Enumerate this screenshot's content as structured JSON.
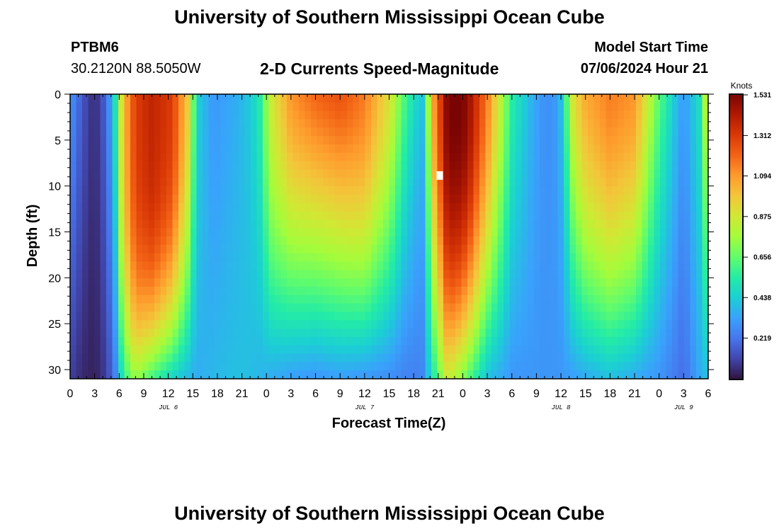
{
  "header": {
    "title": "University of Southern Mississippi Ocean Cube",
    "station_id": "PTBM6",
    "station_coords": "30.2120N  88.5050W",
    "plot_title": "2-D Currents Speed-Magnitude",
    "model_start_label": "Model Start Time",
    "model_start_value": "07/06/2024 Hour 21"
  },
  "footer": {
    "title": "University of Southern Mississippi Ocean Cube"
  },
  "chart_data": {
    "type": "heatmap",
    "title": "2-D Currents Speed-Magnitude",
    "xlabel": "Forecast Time(Z)",
    "ylabel": "Depth (ft)",
    "xlim_hours": [
      0,
      78
    ],
    "ylim": [
      31,
      0
    ],
    "x_ticks_hours": [
      0,
      3,
      6,
      9,
      12,
      15,
      18,
      21,
      24,
      27,
      30,
      33,
      36,
      39,
      42,
      45,
      48,
      51,
      54,
      57,
      60,
      63,
      66,
      69,
      72,
      75,
      78
    ],
    "x_tick_labels": [
      "0",
      "3",
      "6",
      "9",
      "12",
      "15",
      "18",
      "21",
      "0",
      "3",
      "6",
      "9",
      "12",
      "15",
      "18",
      "21",
      "0",
      "3",
      "6",
      "9",
      "12",
      "15",
      "18",
      "21",
      "0",
      "3",
      "6"
    ],
    "y_ticks": [
      0,
      5,
      10,
      15,
      20,
      25,
      30
    ],
    "y_tick_labels": [
      "0",
      "5",
      "10",
      "15",
      "20",
      "25",
      "30"
    ],
    "date_labels": [
      {
        "text": "JUL 6",
        "hour": 12
      },
      {
        "text": "JUL 7",
        "hour": 36
      },
      {
        "text": "JUL 8",
        "hour": 60
      },
      {
        "text": "JUL 9",
        "hour": 75
      }
    ],
    "colorbar": {
      "units": "Knots",
      "min": 0,
      "max": 1.531,
      "tick_values": [
        1.531,
        1.312,
        1.094,
        0.875,
        0.656,
        0.438,
        0.219
      ],
      "tick_labels": [
        "1.531",
        "1.312",
        "1.094",
        "0.875",
        "0.656",
        "0.438",
        "0.219"
      ],
      "colors": [
        "#30123b",
        "#4145ab",
        "#4675ed",
        "#39a2fc",
        "#1bcfd4",
        "#24eca6",
        "#61fc6c",
        "#a4fc3b",
        "#d1e834",
        "#f3c63a",
        "#fe9b2d",
        "#f36315",
        "#d93806",
        "#b11901",
        "#7a0403"
      ]
    },
    "hour_knots": [
      0,
      1.5,
      3,
      4.5,
      5.5,
      6.5,
      8,
      10,
      12.5,
      14.5,
      15.5,
      17.5,
      20,
      21.5,
      23,
      24.5,
      27,
      30,
      33,
      36,
      39,
      41,
      43,
      44.5,
      46,
      47,
      48.5,
      51,
      54,
      56,
      57.5,
      59,
      60,
      61.5,
      63,
      66,
      69,
      72,
      75,
      77,
      78
    ],
    "surface_speed": [
      0.3,
      0.15,
      0.05,
      0.2,
      0.5,
      1.0,
      1.3,
      1.38,
      1.3,
      0.95,
      0.45,
      0.3,
      0.35,
      0.4,
      0.5,
      0.85,
      1.1,
      1.2,
      1.25,
      1.15,
      0.9,
      0.6,
      0.4,
      1.1,
      1.5,
      1.55,
      1.5,
      1.15,
      0.55,
      0.4,
      0.3,
      0.28,
      0.4,
      0.9,
      1.05,
      1.15,
      1.1,
      0.65,
      0.3,
      0.5,
      0.95
    ],
    "bottom_speed": [
      0.1,
      0.05,
      0.03,
      0.1,
      0.25,
      0.55,
      0.75,
      0.6,
      0.45,
      0.38,
      0.35,
      0.38,
      0.4,
      0.4,
      0.38,
      0.35,
      0.32,
      0.3,
      0.32,
      0.3,
      0.28,
      0.25,
      0.25,
      0.55,
      0.85,
      0.8,
      0.65,
      0.4,
      0.3,
      0.3,
      0.3,
      0.3,
      0.3,
      0.32,
      0.35,
      0.4,
      0.35,
      0.3,
      0.2,
      0.35,
      0.4
    ],
    "shape_exponent": [
      1.2,
      1.0,
      1.0,
      1.0,
      1.3,
      2.5,
      3.0,
      3.0,
      2.5,
      1.5,
      1.3,
      1.2,
      1.0,
      1.1,
      1.2,
      1.5,
      1.3,
      1.2,
      1.2,
      1.5,
      1.3,
      1.0,
      0.8,
      1.5,
      2.0,
      2.2,
      2.0,
      1.5,
      1.2,
      1.0,
      1.0,
      0.8,
      0.8,
      1.2,
      1.4,
      1.5,
      1.4,
      1.0,
      1.0,
      1.2,
      1.2
    ]
  }
}
